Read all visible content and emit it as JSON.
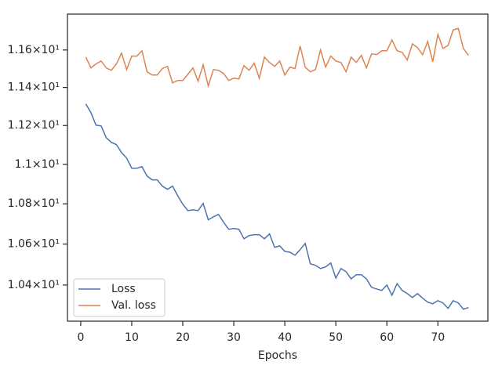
{
  "chart_data": {
    "type": "line",
    "xlabel": "Epochs",
    "log_y": true,
    "legend": "lower left",
    "x": [
      1,
      2,
      3,
      4,
      5,
      6,
      7,
      8,
      9,
      10,
      11,
      12,
      13,
      14,
      15,
      16,
      17,
      18,
      19,
      20,
      21,
      22,
      23,
      24,
      25,
      26,
      27,
      28,
      29,
      30,
      31,
      32,
      33,
      34,
      35,
      36,
      37,
      38,
      39,
      40,
      41,
      42,
      43,
      44,
      45,
      46,
      47,
      48,
      49,
      50,
      51,
      52,
      53,
      54,
      55,
      56,
      57,
      58,
      59,
      60,
      61,
      62,
      63,
      64,
      65,
      66,
      67,
      68,
      69,
      70,
      71,
      72,
      73,
      74,
      75,
      76
    ],
    "series": [
      {
        "name": "Loss",
        "color": "#4c72b0",
        "values": [
          11.313,
          11.267,
          11.202,
          11.198,
          11.137,
          11.113,
          11.101,
          11.06,
          11.032,
          10.98,
          10.98,
          10.988,
          10.94,
          10.921,
          10.921,
          10.889,
          10.873,
          10.889,
          10.841,
          10.798,
          10.766,
          10.77,
          10.766,
          10.802,
          10.72,
          10.735,
          10.747,
          10.708,
          10.673,
          10.677,
          10.673,
          10.626,
          10.642,
          10.646,
          10.646,
          10.626,
          10.65,
          10.584,
          10.591,
          10.564,
          10.56,
          10.545,
          10.572,
          10.603,
          10.503,
          10.496,
          10.48,
          10.488,
          10.507,
          10.434,
          10.48,
          10.465,
          10.43,
          10.45,
          10.45,
          10.43,
          10.389,
          10.381,
          10.374,
          10.4,
          10.351,
          10.407,
          10.374,
          10.359,
          10.34,
          10.359,
          10.337,
          10.318,
          10.31,
          10.325,
          10.314,
          10.288,
          10.325,
          10.314,
          10.284,
          10.292
        ]
      },
      {
        "name": "Val. loss",
        "color": "#dd8452",
        "values": [
          11.562,
          11.504,
          11.525,
          11.541,
          11.504,
          11.491,
          11.525,
          11.583,
          11.495,
          11.567,
          11.567,
          11.596,
          11.483,
          11.466,
          11.466,
          11.5,
          11.512,
          11.424,
          11.437,
          11.437,
          11.47,
          11.504,
          11.433,
          11.521,
          11.408,
          11.495,
          11.491,
          11.474,
          11.437,
          11.449,
          11.445,
          11.516,
          11.491,
          11.529,
          11.449,
          11.562,
          11.533,
          11.512,
          11.541,
          11.466,
          11.508,
          11.5,
          11.621,
          11.508,
          11.483,
          11.495,
          11.6,
          11.508,
          11.567,
          11.541,
          11.533,
          11.483,
          11.562,
          11.533,
          11.571,
          11.504,
          11.579,
          11.575,
          11.596,
          11.596,
          11.654,
          11.596,
          11.587,
          11.546,
          11.633,
          11.613,
          11.575,
          11.646,
          11.537,
          11.684,
          11.608,
          11.625,
          11.709,
          11.717,
          11.608,
          11.571
        ]
      }
    ],
    "xlim": [
      -2.6,
      79.8
    ],
    "xticks": [
      0,
      10,
      20,
      30,
      40,
      50,
      60,
      70
    ],
    "ylim": [
      10.227,
      11.795
    ],
    "yticks": [
      {
        "value": 10.4,
        "label": "1.04×10¹"
      },
      {
        "value": 10.6,
        "label": "1.06×10¹"
      },
      {
        "value": 10.8,
        "label": "1.08×10¹"
      },
      {
        "value": 11,
        "label": "1.1×10¹"
      },
      {
        "value": 11.2,
        "label": "1.12×10¹"
      },
      {
        "value": 11.4,
        "label": "1.14×10¹"
      },
      {
        "value": 11.6,
        "label": "1.16×10¹"
      }
    ]
  }
}
